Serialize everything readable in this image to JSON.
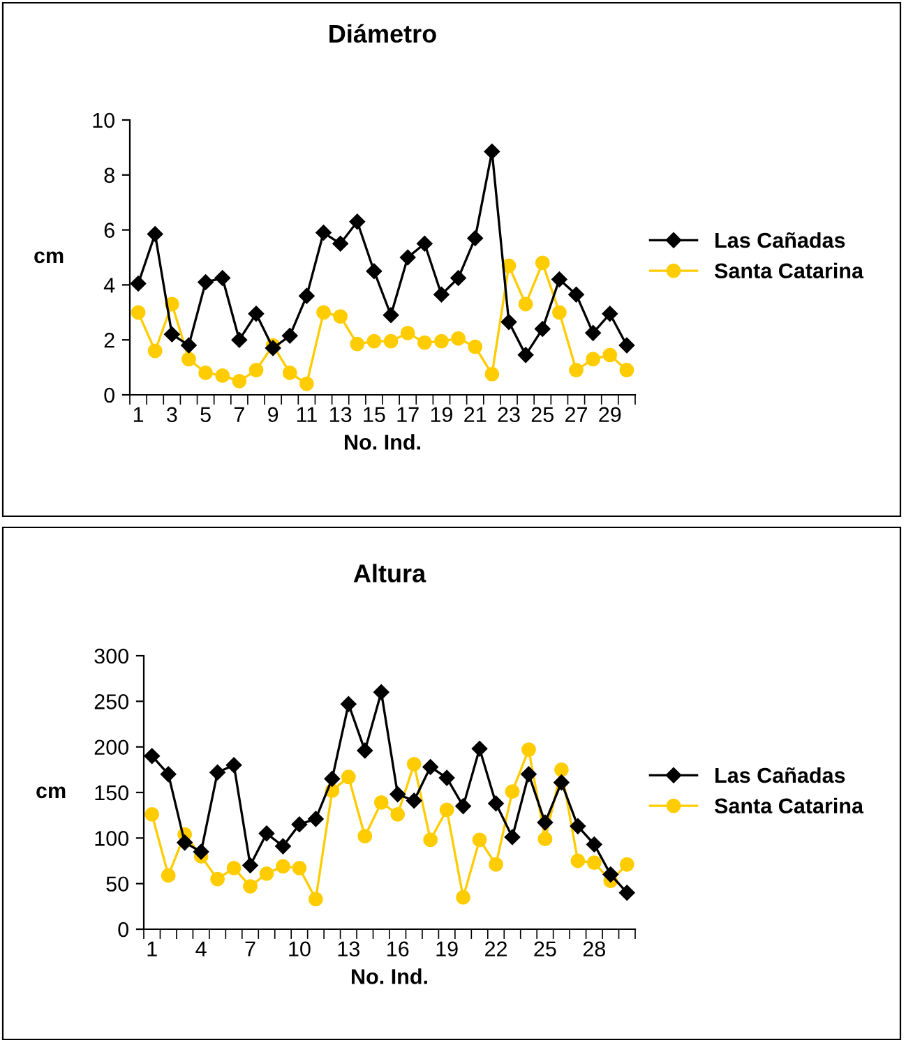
{
  "chart_data": [
    {
      "type": "line",
      "title": "Diámetro",
      "xlabel": "No. Ind.",
      "ylabel": "cm",
      "categories": [
        "1",
        null,
        "3",
        null,
        "5",
        null,
        "7",
        null,
        "9",
        null,
        "11",
        null,
        "13",
        null,
        "15",
        null,
        "17",
        null,
        "19",
        null,
        "21",
        null,
        "23",
        null,
        "25",
        null,
        "27",
        null,
        "29",
        null
      ],
      "ylim": [
        0,
        10
      ],
      "yticks": [
        0,
        2,
        4,
        6,
        8,
        10
      ],
      "grid": false,
      "legend": "right",
      "series": [
        {
          "name": "Las Cañadas",
          "color": "#000000",
          "marker": "diamond",
          "values": [
            4.05,
            5.85,
            2.2,
            1.8,
            4.1,
            4.25,
            2.0,
            2.95,
            1.7,
            2.15,
            3.6,
            5.9,
            5.5,
            6.3,
            4.5,
            2.9,
            5.0,
            5.5,
            3.65,
            4.25,
            5.7,
            8.85,
            2.65,
            1.45,
            2.4,
            4.2,
            3.65,
            2.25,
            2.95,
            1.8
          ]
        },
        {
          "name": "Santa Catarina",
          "color": "#ffcc00",
          "marker": "circle",
          "values": [
            3.0,
            1.6,
            3.3,
            1.3,
            0.8,
            0.7,
            0.5,
            0.9,
            1.8,
            0.8,
            0.4,
            3.0,
            2.85,
            1.85,
            1.95,
            1.95,
            2.25,
            1.9,
            1.95,
            2.05,
            1.75,
            0.75,
            4.7,
            3.3,
            4.8,
            3.0,
            0.9,
            1.3,
            1.45,
            0.9
          ]
        }
      ]
    },
    {
      "type": "line",
      "title": "Altura",
      "xlabel": "No. Ind.",
      "ylabel": "cm",
      "categories": [
        "1",
        null,
        null,
        "4",
        null,
        null,
        "7",
        null,
        null,
        "10",
        null,
        null,
        "13",
        null,
        null,
        "16",
        null,
        null,
        "19",
        null,
        null,
        "22",
        null,
        null,
        "25",
        null,
        null,
        "28",
        null,
        null
      ],
      "ylim": [
        0,
        300
      ],
      "yticks": [
        0,
        50,
        100,
        150,
        200,
        250,
        300
      ],
      "grid": false,
      "legend": "right",
      "series": [
        {
          "name": "Las Cañadas",
          "color": "#000000",
          "marker": "diamond",
          "values": [
            190,
            170,
            95,
            85,
            172,
            180,
            70,
            105,
            91,
            115,
            121,
            165,
            247,
            196,
            260,
            148,
            141,
            178,
            166,
            135,
            198,
            138,
            101,
            170,
            117,
            161,
            113,
            93,
            60,
            40
          ]
        },
        {
          "name": "Santa Catarina",
          "color": "#ffcc00",
          "marker": "circle",
          "values": [
            126,
            59,
            104,
            80,
            55,
            67,
            47,
            61,
            69,
            67,
            33,
            152,
            167,
            102,
            139,
            126,
            181,
            98,
            131,
            35,
            98,
            71,
            151,
            197,
            99,
            175,
            75,
            73,
            53,
            71
          ]
        }
      ]
    }
  ]
}
